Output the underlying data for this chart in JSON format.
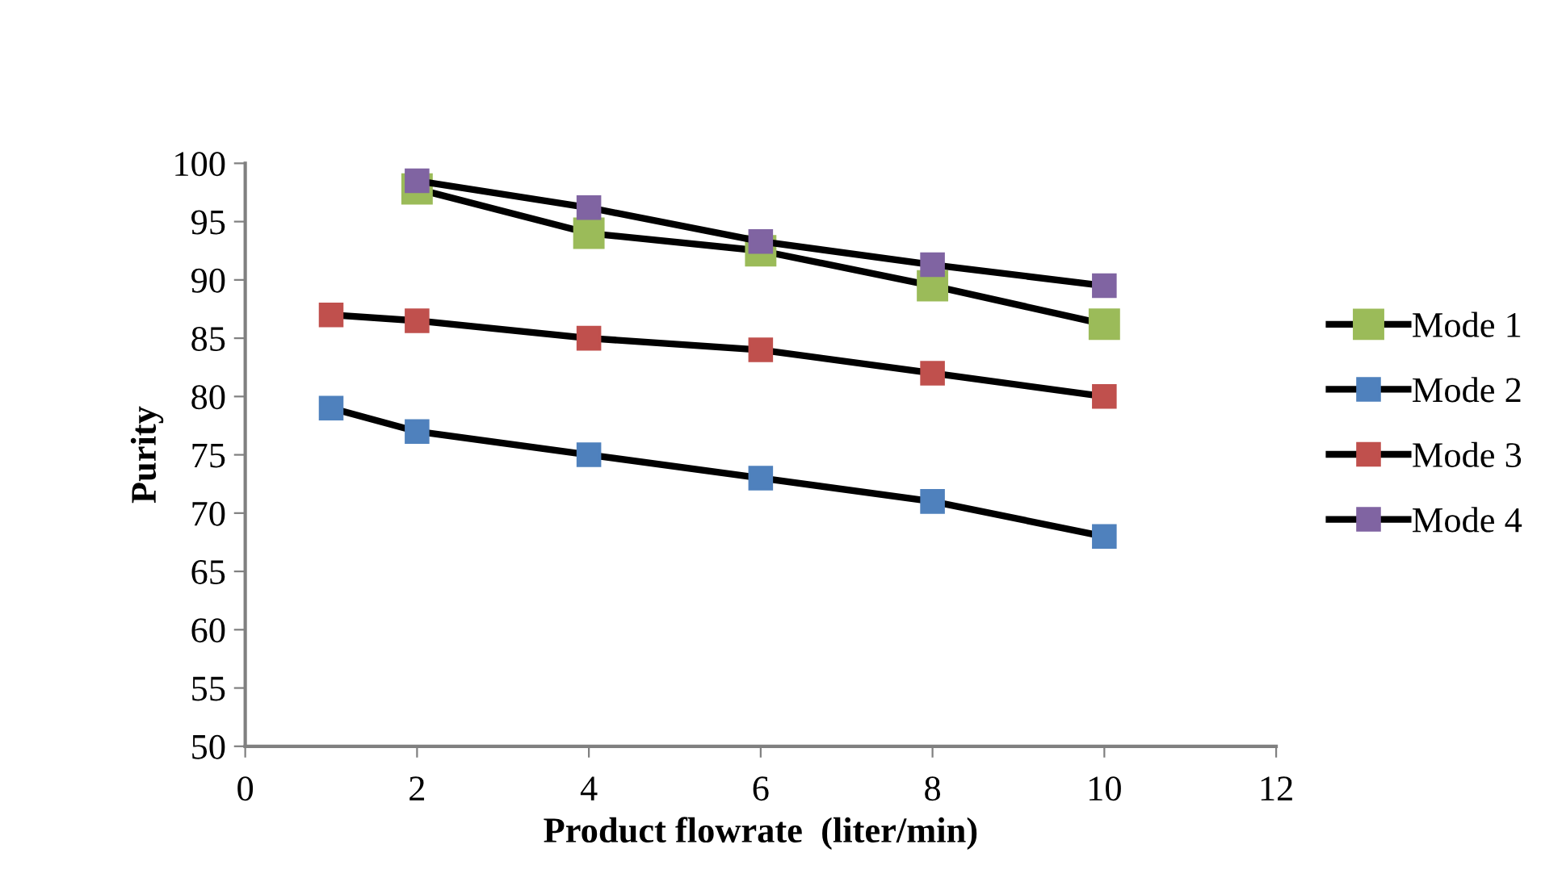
{
  "chart_data": {
    "type": "line",
    "xlabel": "Product flowrate  (liter/min)",
    "ylabel": "Purity",
    "xlim": [
      0,
      12
    ],
    "xticks": [
      0,
      2,
      4,
      6,
      8,
      10,
      12
    ],
    "ylim": [
      50,
      100
    ],
    "yticks": [
      50,
      55,
      60,
      65,
      70,
      75,
      80,
      85,
      90,
      95,
      100
    ],
    "grid": false,
    "legend": "right",
    "marker": "square",
    "line_style": "solid",
    "series": [
      {
        "name": "Mode 1",
        "color": "#9bbb59",
        "x": [
          2,
          4,
          6,
          8,
          10
        ],
        "values": [
          97.8,
          94,
          92.5,
          89.5,
          86.2
        ]
      },
      {
        "name": "Mode 2",
        "color": "#4f81bd",
        "x": [
          1,
          2,
          4,
          6,
          8,
          10
        ],
        "values": [
          79,
          77,
          75,
          73,
          71,
          68
        ]
      },
      {
        "name": "Mode 3",
        "color": "#c0504d",
        "x": [
          1,
          2,
          4,
          6,
          8,
          10
        ],
        "values": [
          87,
          86.5,
          85,
          84,
          82,
          80
        ]
      },
      {
        "name": "Mode 4",
        "color": "#8064a2",
        "x": [
          2,
          4,
          6,
          8,
          10
        ],
        "values": [
          98.5,
          96.2,
          93.3,
          91.3,
          89.5
        ]
      }
    ]
  }
}
